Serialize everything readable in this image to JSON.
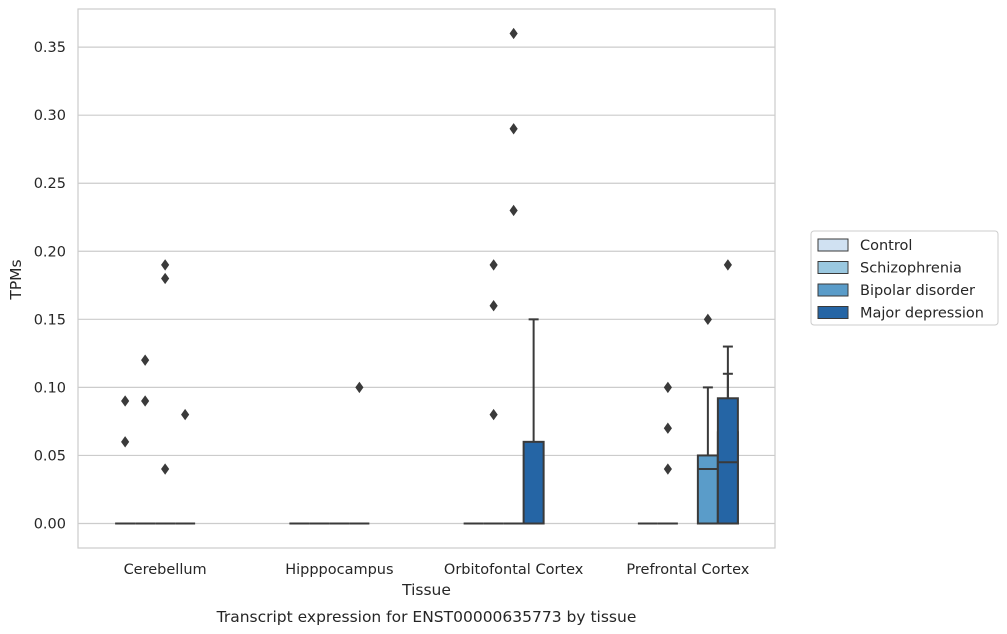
{
  "chart_data": {
    "type": "box",
    "xlabel": "Tissue",
    "ylabel": "TPMs",
    "caption": "Transcript expression for ENST00000635773 by tissue",
    "categories": [
      "Cerebellum",
      "Hipppocampus",
      "Orbitofontal Cortex",
      "Prefrontal Cortex"
    ],
    "ylim": [
      -0.018,
      0.378
    ],
    "yticks": [
      "0.00",
      "0.05",
      "0.10",
      "0.15",
      "0.20",
      "0.25",
      "0.30",
      "0.35"
    ],
    "ytick_values": [
      0,
      0.05,
      0.1,
      0.15,
      0.2,
      0.25,
      0.3,
      0.35
    ],
    "grid": true,
    "legend": {
      "position": "right",
      "title": ""
    },
    "series": [
      {
        "name": "Control",
        "color": "#d0e1f2",
        "boxes": [
          {
            "category": "Cerebellum",
            "q1": 0,
            "median": 0,
            "q3": 0,
            "whisker_low": 0,
            "whisker_high": 0,
            "outliers": [
              0.06,
              0.09
            ]
          },
          {
            "category": "Hipppocampus",
            "q1": 0,
            "median": 0,
            "q3": 0,
            "whisker_low": 0,
            "whisker_high": 0,
            "outliers": []
          },
          {
            "category": "Orbitofontal Cortex",
            "q1": 0,
            "median": 0,
            "q3": 0,
            "whisker_low": 0,
            "whisker_high": 0,
            "outliers": []
          },
          {
            "category": "Prefrontal Cortex",
            "q1": 0,
            "median": 0,
            "q3": 0,
            "whisker_low": 0,
            "whisker_high": 0,
            "outliers": []
          }
        ]
      },
      {
        "name": "Schizophrenia",
        "color": "#9ac8e0",
        "boxes": [
          {
            "category": "Cerebellum",
            "q1": 0,
            "median": 0,
            "q3": 0,
            "whisker_low": 0,
            "whisker_high": 0,
            "outliers": [
              0.09,
              0.12
            ]
          },
          {
            "category": "Hipppocampus",
            "q1": 0,
            "median": 0,
            "q3": 0,
            "whisker_low": 0,
            "whisker_high": 0,
            "outliers": []
          },
          {
            "category": "Orbitofontal Cortex",
            "q1": 0,
            "median": 0,
            "q3": 0,
            "whisker_low": 0,
            "whisker_high": 0,
            "outliers": [
              0.08,
              0.16,
              0.19
            ]
          },
          {
            "category": "Prefrontal Cortex",
            "q1": 0,
            "median": 0,
            "q3": 0,
            "whisker_low": 0,
            "whisker_high": 0,
            "outliers": [
              0.04,
              0.07,
              0.1
            ]
          }
        ]
      },
      {
        "name": "Bipolar disorder",
        "color": "#5a9cc9",
        "boxes": [
          {
            "category": "Cerebellum",
            "q1": 0,
            "median": 0,
            "q3": 0,
            "whisker_low": 0,
            "whisker_high": 0,
            "outliers": [
              0.04,
              0.18,
              0.19
            ]
          },
          {
            "category": "Hipppocampus",
            "q1": 0,
            "median": 0,
            "q3": 0,
            "whisker_low": 0,
            "whisker_high": 0,
            "outliers": []
          },
          {
            "category": "Orbitofontal Cortex",
            "q1": 0,
            "median": 0,
            "q3": 0,
            "whisker_low": 0,
            "whisker_high": 0,
            "outliers": [
              0.23,
              0.29,
              0.36
            ]
          },
          {
            "category": "Prefrontal Cortex",
            "q1": 0,
            "median": 0.04,
            "q3": 0.05,
            "whisker_low": 0,
            "whisker_high": 0.1,
            "outliers": [
              0.15
            ]
          }
        ]
      },
      {
        "name": "Major depression",
        "color": "#2565a5",
        "boxes": [
          {
            "category": "Cerebellum",
            "q1": 0,
            "median": 0,
            "q3": 0,
            "whisker_low": 0,
            "whisker_high": 0,
            "outliers": [
              0.08
            ]
          },
          {
            "category": "Hipppocampus",
            "q1": 0,
            "median": 0,
            "q3": 0,
            "whisker_low": 0,
            "whisker_high": 0,
            "outliers": [
              0.1
            ]
          },
          {
            "category": "Orbitofontal Cortex",
            "q1": 0,
            "median": 0,
            "q3": 0.06,
            "whisker_low": 0,
            "whisker_high": 0.15,
            "outliers": []
          },
          {
            "category": "Prefrontal Cortex",
            "q1": 0,
            "median": 0,
            "q3": 0.067,
            "whisker_low": 0,
            "whisker_high": 0.11,
            "outliers": [
              0.19
            ]
          }
        ]
      },
      {
        "name": "",
        "color": "#2565a5",
        "boxes": [
          {
            "category": "Prefrontal Cortex",
            "q1": 0,
            "median": 0.045,
            "q3": 0.092,
            "whisker_low": 0,
            "whisker_high": 0.13,
            "outliers": []
          }
        ]
      }
    ]
  }
}
